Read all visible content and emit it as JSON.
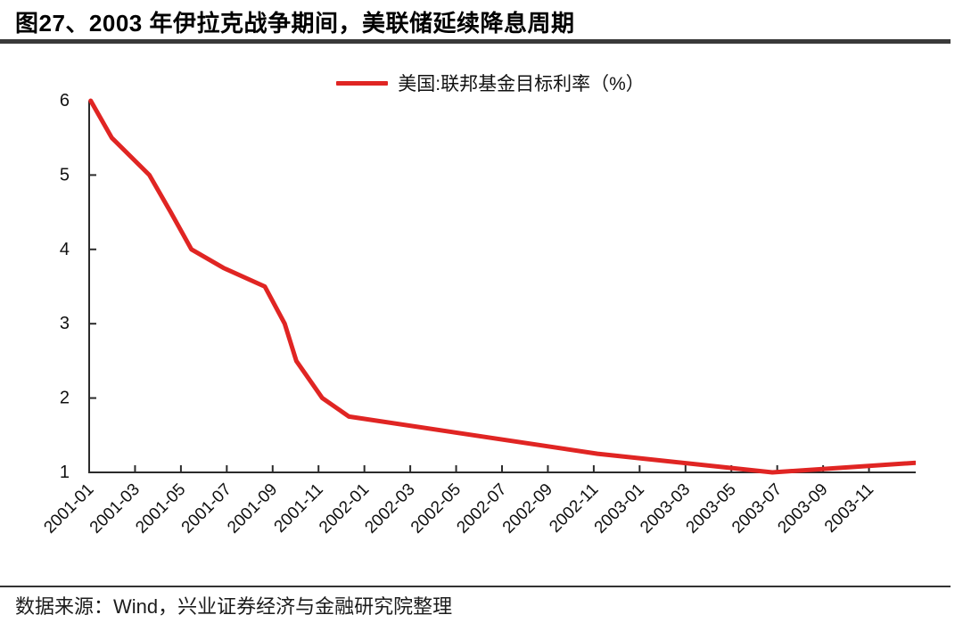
{
  "title": "图27、2003 年伊拉克战争期间，美联储延续降息周期",
  "legend": {
    "label": "美国:联邦基金目标利率（%）",
    "line_color": "#e02523"
  },
  "footer": {
    "source_text": "数据来源：Wind，兴业证券经济与金融研究院整理"
  },
  "colors": {
    "series_red": "#e02523",
    "axis": "#2b2b2b",
    "text": "#111111",
    "title_rule": "#3a3a3a"
  },
  "chart_data": {
    "type": "line",
    "title": "图27、2003 年伊拉克战争期间，美联储延续降息周期",
    "xlabel": "",
    "ylabel": "",
    "ylim": [
      1,
      6
    ],
    "y_ticks": [
      1,
      2,
      3,
      4,
      5,
      6
    ],
    "x_start": "2001-01",
    "x_end": "2004-01",
    "x_range_months": 36,
    "x_tick_labels": [
      "2001-01",
      "2001-03",
      "2001-05",
      "2001-07",
      "2001-09",
      "2001-11",
      "2002-01",
      "2002-03",
      "2002-05",
      "2002-07",
      "2002-09",
      "2002-11",
      "2003-01",
      "2003-03",
      "2003-05",
      "2003-07",
      "2003-09",
      "2003-11"
    ],
    "x_tick_step_months": 2,
    "grid": false,
    "legend_position": "top-center",
    "series": [
      {
        "name": "美国:联邦基金目标利率（%）",
        "color": "#e02523",
        "points": [
          {
            "date": "2001-01-03",
            "value": 6.0
          },
          {
            "date": "2001-01-31",
            "value": 5.5
          },
          {
            "date": "2001-03-20",
            "value": 5.0
          },
          {
            "date": "2001-04-18",
            "value": 4.5
          },
          {
            "date": "2001-05-15",
            "value": 4.0
          },
          {
            "date": "2001-06-27",
            "value": 3.75
          },
          {
            "date": "2001-08-21",
            "value": 3.5
          },
          {
            "date": "2001-09-17",
            "value": 3.0
          },
          {
            "date": "2001-10-02",
            "value": 2.5
          },
          {
            "date": "2001-11-06",
            "value": 2.0
          },
          {
            "date": "2001-12-11",
            "value": 1.75
          },
          {
            "date": "2002-11-06",
            "value": 1.25
          },
          {
            "date": "2003-06-25",
            "value": 1.0
          },
          {
            "date": "2004-06-30",
            "value": 1.25
          }
        ]
      }
    ]
  }
}
